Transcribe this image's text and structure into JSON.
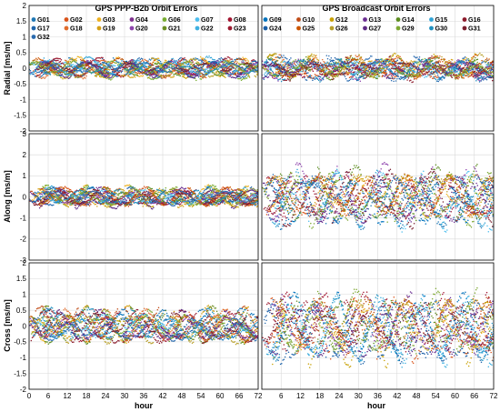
{
  "figure": {
    "titles": [
      "GPS PPP-B2b Orbit Errors",
      "GPS Broadcast Orbit Errors"
    ],
    "xlabel": "hour",
    "row_labels": [
      "Radial [ms/m]",
      "Along [ms/m]",
      "Cross [ms/m]"
    ]
  },
  "chart_data": {
    "type": "scatter",
    "x_range": [
      0,
      72
    ],
    "x_ticks": [
      0,
      6,
      12,
      18,
      24,
      30,
      36,
      42,
      48,
      54,
      60,
      66,
      72
    ],
    "left_x_tick_labels": [
      "0",
      "6",
      "12",
      "18",
      "24",
      "30",
      "36",
      "42",
      "48",
      "54",
      "60",
      "66",
      "72"
    ],
    "right_x_tick_labels": [
      "6",
      "12",
      "18",
      "24",
      "30",
      "36",
      "42",
      "48",
      "54",
      "60",
      "66",
      "72"
    ],
    "grid": true,
    "panels": [
      {
        "row": 0,
        "col": 0,
        "title": "GPS PPP-B2b Orbit Errors",
        "ylabel": "Radial [ms/m]",
        "ylim": [
          -2,
          2
        ],
        "y_ticks": [
          -2,
          -1.5,
          -1,
          -0.5,
          0,
          0.5,
          1,
          1.5,
          2
        ],
        "y_tick_labels": [
          "-2",
          "-1.5",
          "-1",
          "-0.5",
          "0",
          "0.5",
          "1",
          "1.5",
          "2"
        ],
        "amplitude": 0.2,
        "noise": 0.03
      },
      {
        "row": 0,
        "col": 1,
        "title": "GPS Broadcast Orbit Errors",
        "ylim": [
          -2,
          2
        ],
        "amplitude": 0.25,
        "noise": 0.06
      },
      {
        "row": 1,
        "col": 0,
        "ylabel": "Along [ms/m]",
        "ylim": [
          -3,
          3
        ],
        "y_ticks": [
          -3,
          -2,
          -1,
          0,
          1,
          2,
          3
        ],
        "y_tick_labels": [
          "-3",
          "-2",
          "-1",
          "0",
          "1",
          "2",
          "3"
        ],
        "amplitude": 0.3,
        "noise": 0.05
      },
      {
        "row": 1,
        "col": 1,
        "ylim": [
          -3,
          3
        ],
        "amplitude": 0.9,
        "noise": 0.12
      },
      {
        "row": 2,
        "col": 0,
        "ylabel": "Cross [ms/m]",
        "ylim": [
          -2,
          2
        ],
        "y_ticks": [
          -2,
          -1.5,
          -1,
          -0.5,
          0,
          0.5,
          1,
          1.5,
          2
        ],
        "y_tick_labels": [
          "-2",
          "-1.5",
          "-1",
          "-0.5",
          "0",
          "0.5",
          "1",
          "1.5",
          "2"
        ],
        "amplitude": 0.35,
        "noise": 0.04
      },
      {
        "row": 2,
        "col": 1,
        "ylim": [
          -2,
          2
        ],
        "amplitude": 0.7,
        "noise": 0.1
      }
    ],
    "series": [
      {
        "name": "G01",
        "color": "#1f77b4"
      },
      {
        "name": "G02",
        "color": "#d95319"
      },
      {
        "name": "G03",
        "color": "#edb120"
      },
      {
        "name": "G04",
        "color": "#7e2f8e"
      },
      {
        "name": "G06",
        "color": "#77ac30"
      },
      {
        "name": "G07",
        "color": "#4dbeee"
      },
      {
        "name": "G08",
        "color": "#a2142f"
      },
      {
        "name": "G09",
        "color": "#0072bd"
      },
      {
        "name": "G10",
        "color": "#c04b16"
      },
      {
        "name": "G12",
        "color": "#c8a000"
      },
      {
        "name": "G13",
        "color": "#6a2c91"
      },
      {
        "name": "G14",
        "color": "#5b8c1f"
      },
      {
        "name": "G15",
        "color": "#2fa3d6"
      },
      {
        "name": "G16",
        "color": "#8c1a2b"
      },
      {
        "name": "G17",
        "color": "#2166ac"
      },
      {
        "name": "G18",
        "color": "#e06c2c"
      },
      {
        "name": "G19",
        "color": "#d4a017"
      },
      {
        "name": "G20",
        "color": "#8e44ad"
      },
      {
        "name": "G21",
        "color": "#6b8e23"
      },
      {
        "name": "G22",
        "color": "#3fb0e0"
      },
      {
        "name": "G23",
        "color": "#9b1b30"
      },
      {
        "name": "G24",
        "color": "#1a5fa8"
      },
      {
        "name": "G25",
        "color": "#cc5500"
      },
      {
        "name": "G26",
        "color": "#b8a02a"
      },
      {
        "name": "G27",
        "color": "#5e2a84"
      },
      {
        "name": "G29",
        "color": "#7da832"
      },
      {
        "name": "G30",
        "color": "#1e90c0"
      },
      {
        "name": "G31",
        "color": "#7a1f2e"
      },
      {
        "name": "G32",
        "color": "#2b6cb0"
      }
    ],
    "legend": {
      "left_lines": [
        [
          "G01",
          "G02",
          "G03",
          "G04",
          "G06",
          "G07",
          "G08"
        ],
        [
          "G17",
          "G18",
          "G19",
          "G20",
          "G21",
          "G22",
          "G23"
        ],
        [
          "G32"
        ]
      ],
      "right_lines": [
        [
          "G09",
          "G10",
          "G12",
          "G13",
          "G14",
          "G15",
          "G16"
        ],
        [
          "G24",
          "G25",
          "G26",
          "G27",
          "G29",
          "G30",
          "G31"
        ]
      ]
    }
  }
}
